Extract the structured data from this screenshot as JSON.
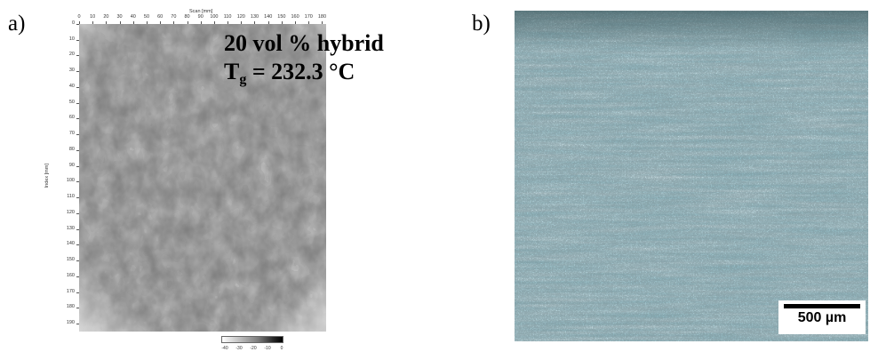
{
  "panel_a": {
    "label": "a)",
    "annotation_line1": "20 vol % hybrid",
    "annotation_tg_symbol": "T",
    "annotation_tg_subscript": "g",
    "annotation_tg_value": " = 232.3 °C",
    "x_axis_title": "Scan [mm]",
    "x_ticks": [
      "0",
      "10",
      "20",
      "30",
      "40",
      "50",
      "60",
      "70",
      "80",
      "90",
      "100",
      "110",
      "120",
      "130",
      "140",
      "150",
      "160",
      "170",
      "180"
    ],
    "y_axis_title": "Index [mm]",
    "y_ticks": [
      "0",
      "10",
      "20",
      "30",
      "40",
      "50",
      "60",
      "70",
      "80",
      "90",
      "100",
      "110",
      "120",
      "130",
      "140",
      "150",
      "160",
      "170",
      "180",
      "190"
    ],
    "colorbar_ticks": [
      "-40",
      "-30",
      "-20",
      "-10",
      "0"
    ]
  },
  "panel_b": {
    "label": "b)",
    "scale_bar_label": "500 µm"
  },
  "colors": {
    "map_base": "#7a7a7a",
    "micrograph_base": "#8fbfca"
  }
}
